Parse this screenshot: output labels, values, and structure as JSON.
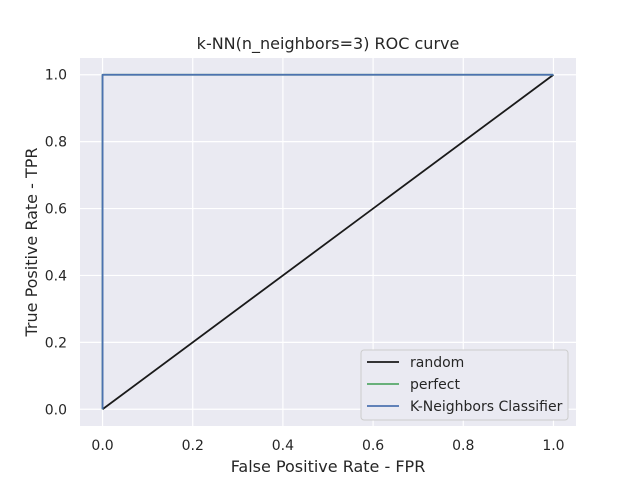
{
  "chart_data": {
    "type": "line",
    "title": "k-NN(n_neighbors=3) ROC curve",
    "xlabel": "False Positive Rate - FPR",
    "ylabel": "True Positive Rate - TPR",
    "xlim": [
      -0.05,
      1.05
    ],
    "ylim": [
      -0.05,
      1.05
    ],
    "xticks": [
      0.0,
      0.2,
      0.4,
      0.6,
      0.8,
      1.0
    ],
    "yticks": [
      0.0,
      0.2,
      0.4,
      0.6,
      0.8,
      1.0
    ],
    "xtick_labels": [
      "0.0",
      "0.2",
      "0.4",
      "0.6",
      "0.8",
      "1.0"
    ],
    "ytick_labels": [
      "0.0",
      "0.2",
      "0.4",
      "0.6",
      "0.8",
      "1.0"
    ],
    "grid": true,
    "legend_position": "lower-right",
    "background_color": "#eaeaf2",
    "series": [
      {
        "name": "random",
        "color": "#1a1a1a",
        "x": [
          0,
          1
        ],
        "y": [
          0,
          1
        ]
      },
      {
        "name": "perfect",
        "color": "#55a868",
        "x": [
          0,
          0,
          1
        ],
        "y": [
          0,
          1,
          1
        ]
      },
      {
        "name": "K-Neighbors Classifier",
        "color": "#4c72b0",
        "x": [
          0,
          0,
          1
        ],
        "y": [
          0,
          1,
          1
        ]
      }
    ]
  }
}
